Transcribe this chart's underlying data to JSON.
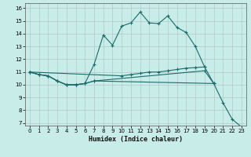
{
  "bg_color": "#c8ece8",
  "grid_color": "#b0c8c8",
  "line_color": "#1a6b6b",
  "xlabel": "Humidex (Indice chaleur)",
  "xlim": [
    -0.5,
    23.5
  ],
  "ylim": [
    6.8,
    16.4
  ],
  "xticks": [
    0,
    1,
    2,
    3,
    4,
    5,
    6,
    7,
    8,
    9,
    10,
    11,
    12,
    13,
    14,
    15,
    16,
    17,
    18,
    19,
    20,
    21,
    22,
    23
  ],
  "yticks": [
    7,
    8,
    9,
    10,
    11,
    12,
    13,
    14,
    15,
    16
  ],
  "series": [
    {
      "x": [
        0,
        1,
        2,
        3,
        4,
        5,
        6,
        7,
        8,
        9,
        10,
        11,
        12,
        13,
        14,
        15,
        16,
        17,
        18,
        19,
        20
      ],
      "y": [
        11,
        10.8,
        10.7,
        10.3,
        10.0,
        10.0,
        10.1,
        11.6,
        13.9,
        13.1,
        14.6,
        14.85,
        15.7,
        14.85,
        14.8,
        15.4,
        14.5,
        14.1,
        13.0,
        11.4,
        10.1
      ]
    },
    {
      "x": [
        0,
        1,
        2,
        3,
        4,
        5,
        6,
        7,
        19,
        20,
        21,
        22,
        23
      ],
      "y": [
        11,
        10.8,
        10.7,
        10.3,
        10.0,
        10.0,
        10.1,
        10.3,
        11.1,
        10.1,
        8.6,
        7.3,
        6.7
      ]
    },
    {
      "x": [
        0,
        1,
        2,
        3,
        4,
        5,
        6,
        7,
        20
      ],
      "y": [
        11,
        10.8,
        10.7,
        10.3,
        10.0,
        10.0,
        10.1,
        10.3,
        10.1
      ]
    },
    {
      "x": [
        0,
        10,
        11,
        12,
        13,
        14,
        15,
        16,
        17,
        18,
        19
      ],
      "y": [
        11,
        10.7,
        10.8,
        10.9,
        11.0,
        11.0,
        11.1,
        11.2,
        11.3,
        11.35,
        11.4
      ]
    }
  ]
}
